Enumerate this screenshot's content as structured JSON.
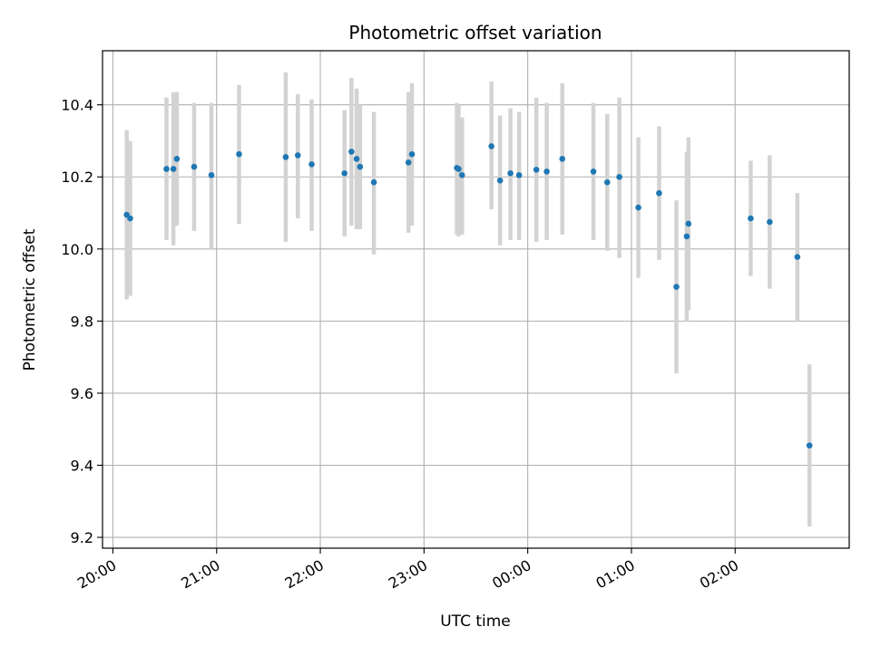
{
  "chart_data": {
    "type": "scatter",
    "title": "Photometric offset variation",
    "xlabel": "UTC time",
    "ylabel": "Photometric offset",
    "x_axis": {
      "kind": "time",
      "range": [
        "19:54",
        "03:06"
      ],
      "ticks": [
        {
          "t": "20:00",
          "label": "20:00"
        },
        {
          "t": "21:00",
          "label": "21:00"
        },
        {
          "t": "22:00",
          "label": "22:00"
        },
        {
          "t": "23:00",
          "label": "23:00"
        },
        {
          "t": "00:00",
          "label": "00:00"
        },
        {
          "t": "01:00",
          "label": "01:00"
        },
        {
          "t": "02:00",
          "label": "02:00"
        }
      ]
    },
    "y_axis": {
      "range": [
        9.17,
        10.55
      ],
      "ticks": [
        {
          "v": 9.2,
          "label": "9.2"
        },
        {
          "v": 9.4,
          "label": "9.4"
        },
        {
          "v": 9.6,
          "label": "9.6"
        },
        {
          "v": 9.8,
          "label": "9.8"
        },
        {
          "v": 10.0,
          "label": "10.0"
        },
        {
          "v": 10.2,
          "label": "10.2"
        },
        {
          "v": 10.4,
          "label": "10.4"
        }
      ]
    },
    "grid": true,
    "marker_color": "#1f77b4",
    "errorbar_color": "#d3d3d3",
    "points": [
      {
        "t": "20:08",
        "y": 10.095,
        "lo": 9.86,
        "hi": 10.33
      },
      {
        "t": "20:10",
        "y": 10.085,
        "lo": 9.87,
        "hi": 10.3
      },
      {
        "t": "20:31",
        "y": 10.222,
        "lo": 10.025,
        "hi": 10.42
      },
      {
        "t": "20:35",
        "y": 10.222,
        "lo": 10.01,
        "hi": 10.435
      },
      {
        "t": "20:37",
        "y": 10.25,
        "lo": 10.065,
        "hi": 10.435
      },
      {
        "t": "20:47",
        "y": 10.228,
        "lo": 10.05,
        "hi": 10.405
      },
      {
        "t": "20:57",
        "y": 10.205,
        "lo": 10.0,
        "hi": 10.405
      },
      {
        "t": "21:13",
        "y": 10.263,
        "lo": 10.07,
        "hi": 10.455
      },
      {
        "t": "21:40",
        "y": 10.255,
        "lo": 10.02,
        "hi": 10.49
      },
      {
        "t": "21:47",
        "y": 10.26,
        "lo": 10.085,
        "hi": 10.43
      },
      {
        "t": "21:55",
        "y": 10.235,
        "lo": 10.05,
        "hi": 10.415
      },
      {
        "t": "22:14",
        "y": 10.21,
        "lo": 10.035,
        "hi": 10.385
      },
      {
        "t": "22:18",
        "y": 10.27,
        "lo": 10.065,
        "hi": 10.475
      },
      {
        "t": "22:21",
        "y": 10.25,
        "lo": 10.055,
        "hi": 10.445
      },
      {
        "t": "22:23",
        "y": 10.228,
        "lo": 10.055,
        "hi": 10.4
      },
      {
        "t": "22:31",
        "y": 10.185,
        "lo": 9.985,
        "hi": 10.38
      },
      {
        "t": "22:51",
        "y": 10.24,
        "lo": 10.045,
        "hi": 10.435
      },
      {
        "t": "22:53",
        "y": 10.263,
        "lo": 10.065,
        "hi": 10.46
      },
      {
        "t": "23:19",
        "y": 10.225,
        "lo": 10.04,
        "hi": 10.405
      },
      {
        "t": "23:20",
        "y": 10.222,
        "lo": 10.035,
        "hi": 10.4
      },
      {
        "t": "23:22",
        "y": 10.205,
        "lo": 10.04,
        "hi": 10.365
      },
      {
        "t": "23:39",
        "y": 10.285,
        "lo": 10.11,
        "hi": 10.465
      },
      {
        "t": "23:44",
        "y": 10.19,
        "lo": 10.01,
        "hi": 10.37
      },
      {
        "t": "23:50",
        "y": 10.21,
        "lo": 10.025,
        "hi": 10.39
      },
      {
        "t": "23:55",
        "y": 10.205,
        "lo": 10.025,
        "hi": 10.38
      },
      {
        "t": "00:05",
        "y": 10.22,
        "lo": 10.02,
        "hi": 10.42
      },
      {
        "t": "00:11",
        "y": 10.215,
        "lo": 10.025,
        "hi": 10.405
      },
      {
        "t": "00:20",
        "y": 10.25,
        "lo": 10.04,
        "hi": 10.46
      },
      {
        "t": "00:38",
        "y": 10.215,
        "lo": 10.025,
        "hi": 10.405
      },
      {
        "t": "00:46",
        "y": 10.185,
        "lo": 9.995,
        "hi": 10.375
      },
      {
        "t": "00:53",
        "y": 10.2,
        "lo": 9.975,
        "hi": 10.42
      },
      {
        "t": "01:04",
        "y": 10.115,
        "lo": 9.92,
        "hi": 10.31
      },
      {
        "t": "01:16",
        "y": 10.155,
        "lo": 9.97,
        "hi": 10.34
      },
      {
        "t": "01:26",
        "y": 9.895,
        "lo": 9.655,
        "hi": 10.135
      },
      {
        "t": "01:32",
        "y": 10.035,
        "lo": 9.8,
        "hi": 10.27
      },
      {
        "t": "01:33",
        "y": 10.07,
        "lo": 9.83,
        "hi": 10.31
      },
      {
        "t": "02:09",
        "y": 10.085,
        "lo": 9.925,
        "hi": 10.245
      },
      {
        "t": "02:20",
        "y": 10.075,
        "lo": 9.89,
        "hi": 10.26
      },
      {
        "t": "02:36",
        "y": 9.978,
        "lo": 9.8,
        "hi": 10.155
      },
      {
        "t": "02:43",
        "y": 9.455,
        "lo": 9.23,
        "hi": 9.68
      }
    ]
  }
}
